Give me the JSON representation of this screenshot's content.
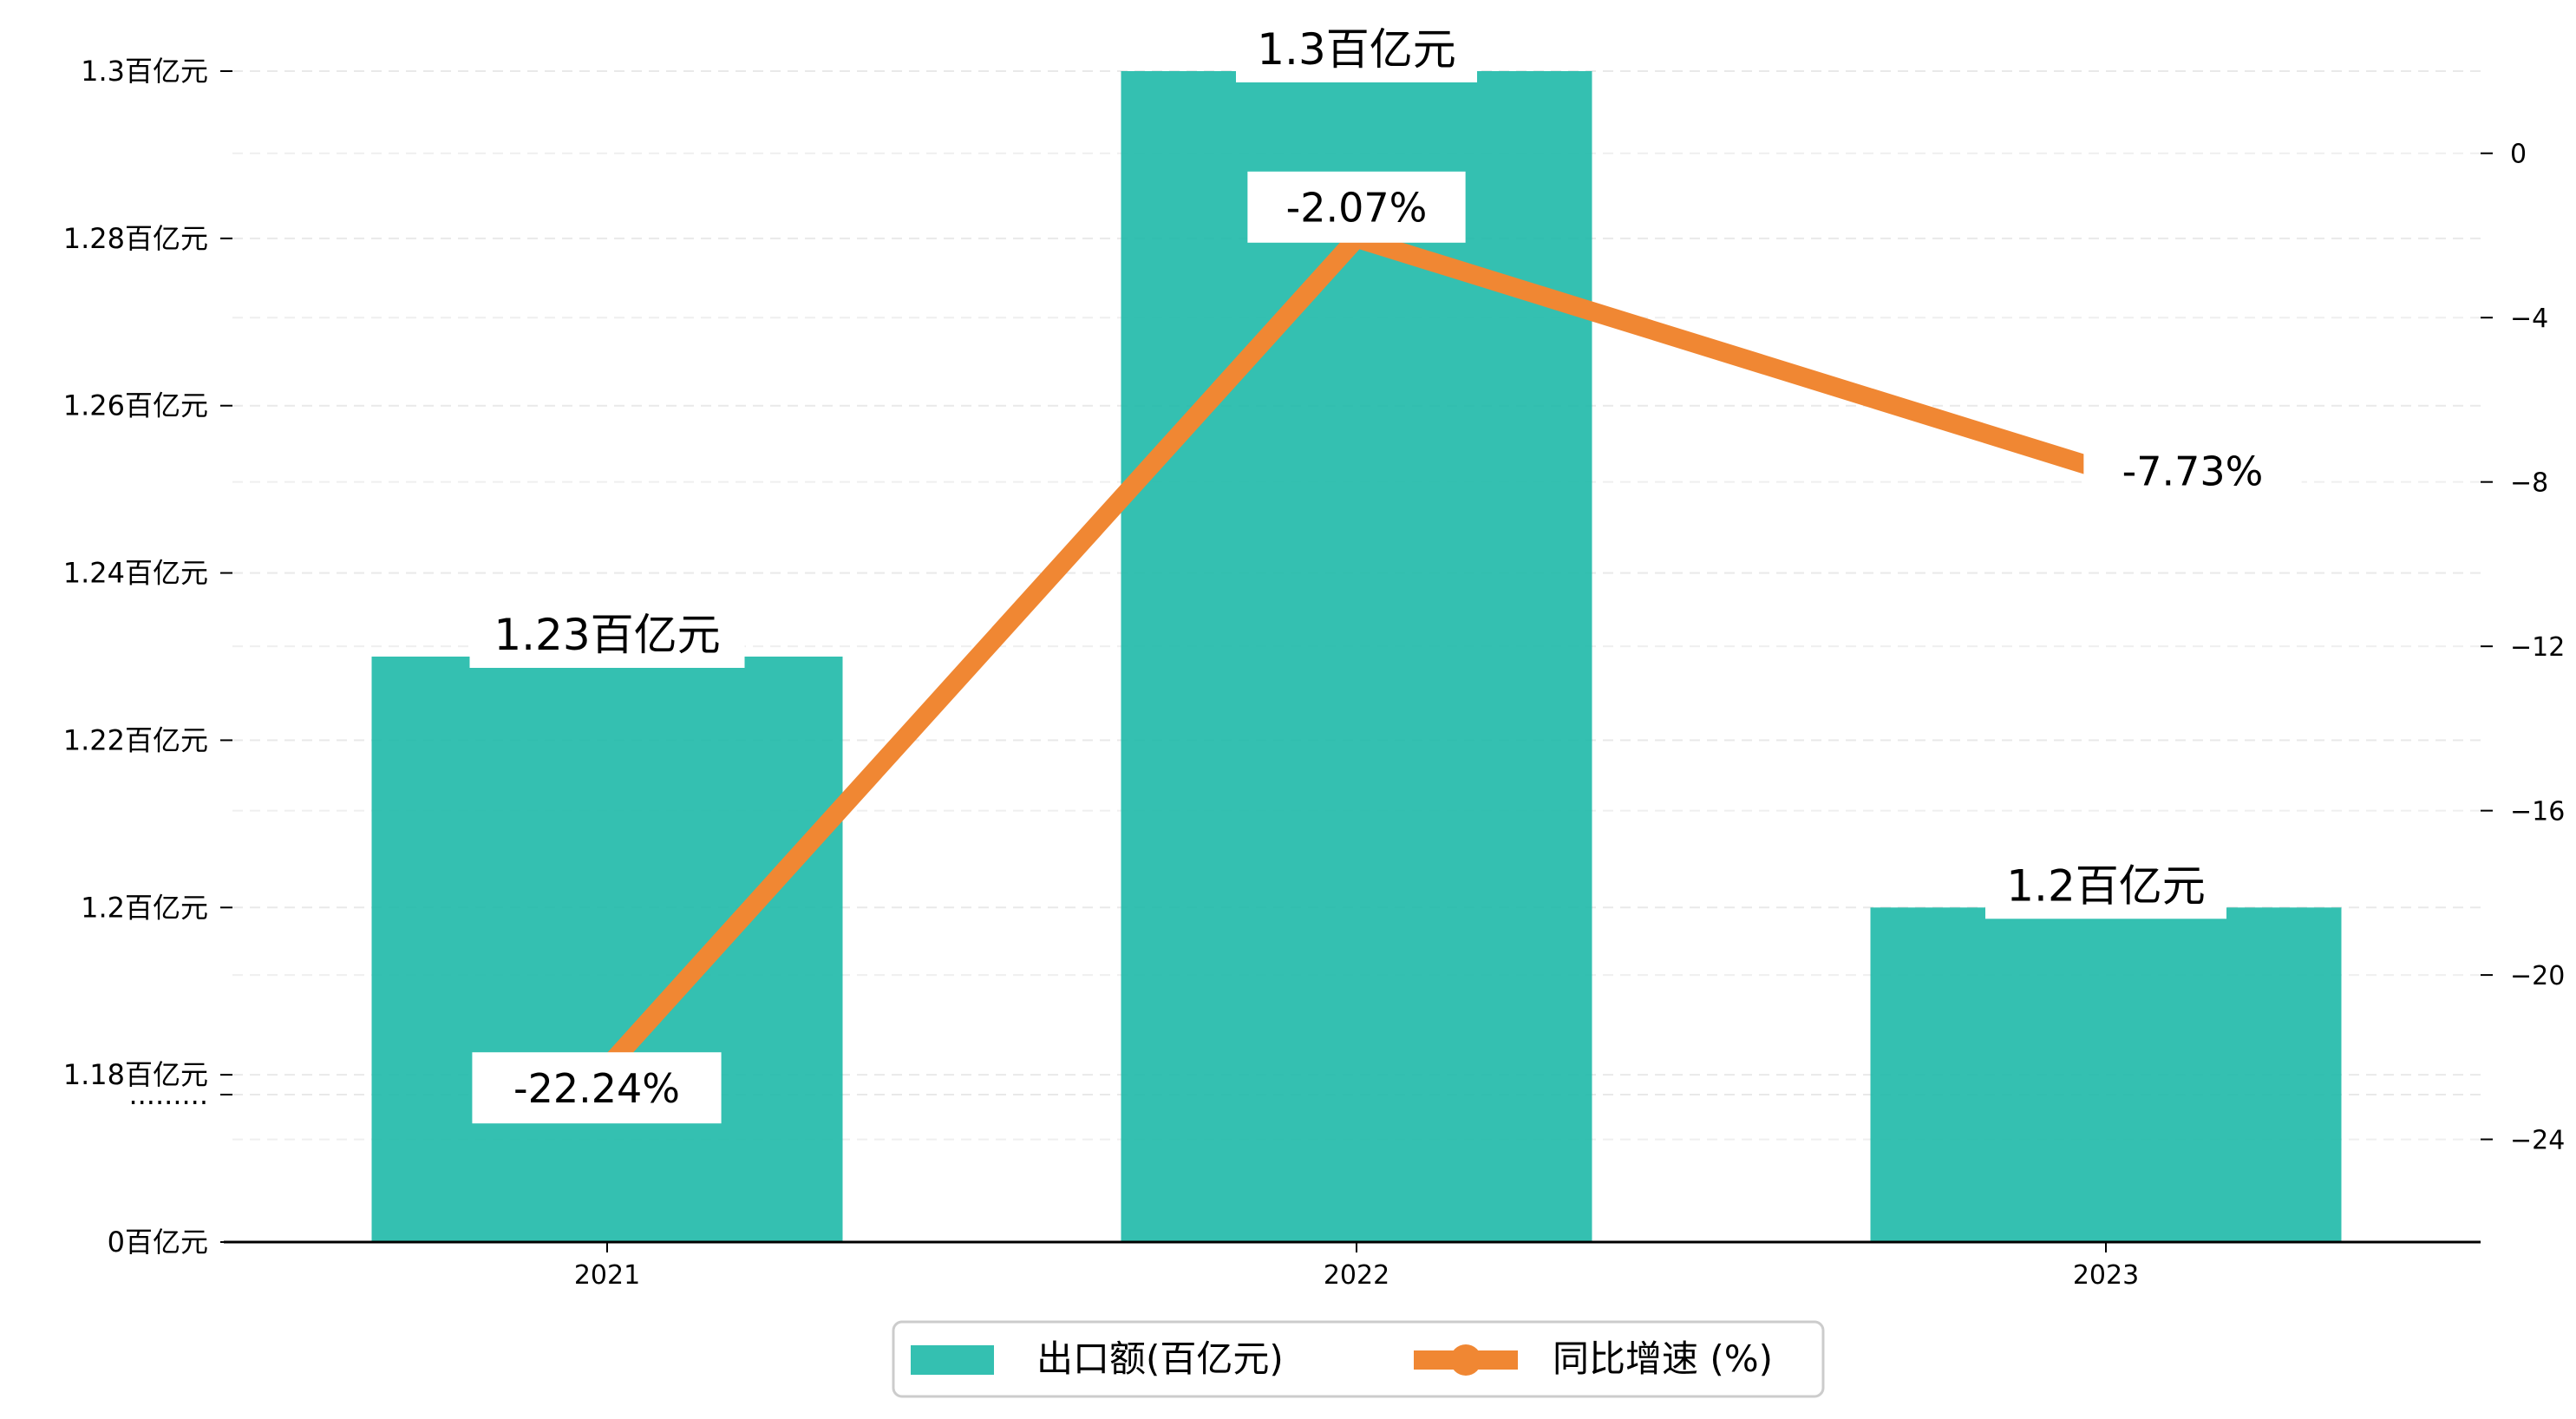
{
  "chart_data": {
    "type": "bar",
    "categories": [
      "2021",
      "2022",
      "2023"
    ],
    "series": [
      {
        "name": "出口额(百亿元)",
        "kind": "bar",
        "axis": "left",
        "color": "#1EB9A8",
        "values": [
          1.23,
          1.3,
          1.2
        ],
        "labels": [
          "1.23百亿元",
          "1.3百亿元",
          "1.2百亿元"
        ]
      },
      {
        "name": "同比增速 (%)",
        "kind": "line",
        "axis": "right",
        "color": "#F08733",
        "values": [
          -22.24,
          -2.07,
          -7.73
        ],
        "labels": [
          "-22.24%",
          "-2.07%",
          "-7.73%"
        ]
      }
    ],
    "left_axis": {
      "broken": true,
      "ylim": [
        1.16,
        1.3
      ],
      "ticks": [
        {
          "value": 0,
          "label": "0百亿元"
        },
        {
          "value": 1.17,
          "label": "........."
        },
        {
          "value": 1.18,
          "label": "1.18百亿元"
        },
        {
          "value": 1.2,
          "label": "1.2百亿元"
        },
        {
          "value": 1.22,
          "label": "1.22百亿元"
        },
        {
          "value": 1.24,
          "label": "1.24百亿元"
        },
        {
          "value": 1.26,
          "label": "1.26百亿元"
        },
        {
          "value": 1.28,
          "label": "1.28百亿元"
        },
        {
          "value": 1.3,
          "label": "1.3百亿元"
        }
      ]
    },
    "right_axis": {
      "ylim": [
        -26.5,
        2.0
      ],
      "ticks": [
        0,
        -4,
        -8,
        -12,
        -16,
        -20,
        -24
      ]
    },
    "grid": true,
    "legend_position": "bottom-center"
  }
}
